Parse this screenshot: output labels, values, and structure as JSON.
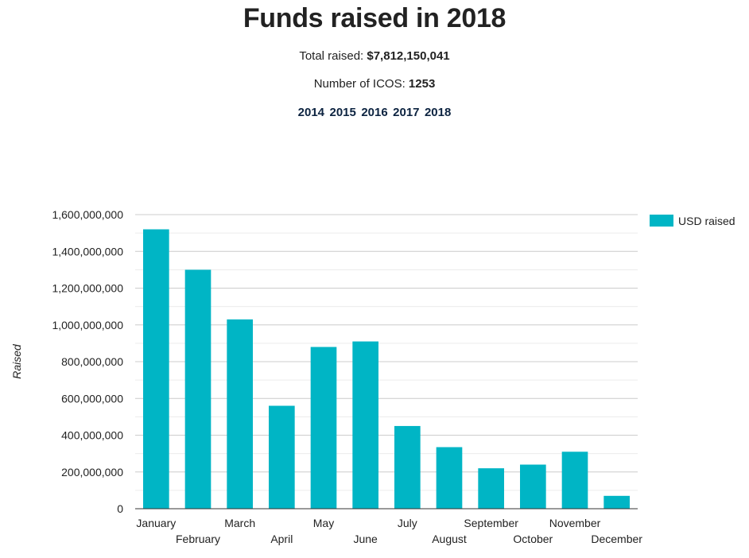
{
  "header": {
    "title": "Funds raised in 2018",
    "total_label": "Total raised:",
    "total_value": "$7,812,150,041",
    "icos_label": "Number of ICOS:",
    "icos_value": "1253",
    "years": [
      "2014",
      "2015",
      "2016",
      "2017",
      "2018"
    ]
  },
  "colors": {
    "bar": "#00b5c5",
    "grid": "#cccccc",
    "minor_grid": "#ececec",
    "axis": "#333333",
    "year_link": "#0c2340"
  },
  "chart_data": {
    "type": "bar",
    "categories": [
      "January",
      "February",
      "March",
      "April",
      "May",
      "June",
      "July",
      "August",
      "September",
      "October",
      "November",
      "December"
    ],
    "series": [
      {
        "name": "USD raised",
        "values": [
          1520000000,
          1300000000,
          1030000000,
          560000000,
          880000000,
          910000000,
          450000000,
          335000000,
          220000000,
          240000000,
          310000000,
          70000000
        ]
      }
    ],
    "ylabel": "Raised",
    "xlabel": "",
    "ylim": [
      0,
      1600000000
    ],
    "yticks": [
      0,
      200000000,
      400000000,
      600000000,
      800000000,
      1000000000,
      1200000000,
      1400000000,
      1600000000
    ],
    "ytick_labels": [
      "0",
      "200,000,000",
      "400,000,000",
      "600,000,000",
      "800,000,000",
      "1,000,000,000",
      "1,200,000,000",
      "1,400,000,000",
      "1,600,000,000"
    ],
    "grid": true,
    "legend": "right"
  }
}
